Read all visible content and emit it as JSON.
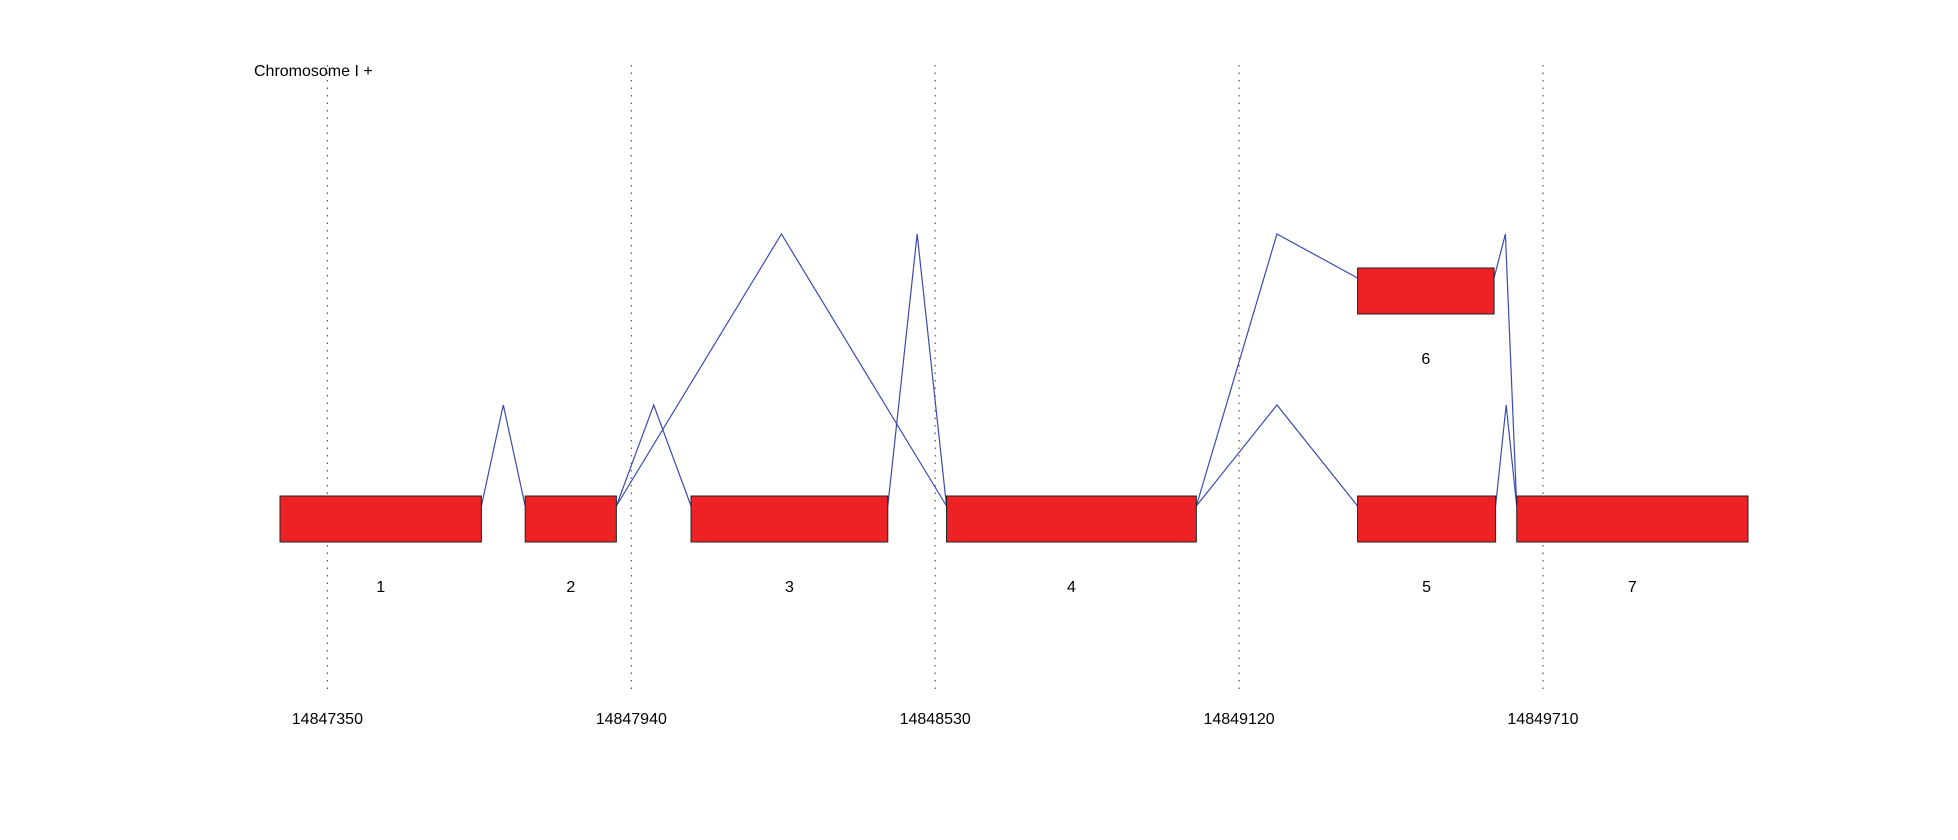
{
  "title": "Chromosome I +",
  "axis": {
    "xlim": [
      14847258,
      14850108
    ],
    "ticks": [
      14847350,
      14847940,
      14848530,
      14849120,
      14849710
    ]
  },
  "exons": [
    {
      "label": "1",
      "start": 14847258,
      "end": 14847649,
      "row": 0
    },
    {
      "label": "2",
      "start": 14847734,
      "end": 14847911,
      "row": 0
    },
    {
      "label": "3",
      "start": 14848056,
      "end": 14848438,
      "row": 0
    },
    {
      "label": "4",
      "start": 14848552,
      "end": 14849037,
      "row": 0
    },
    {
      "label": "5",
      "start": 14849350,
      "end": 14849618,
      "row": 0
    },
    {
      "label": "6",
      "start": 14849350,
      "end": 14849615,
      "row": 1
    },
    {
      "label": "7",
      "start": 14849659,
      "end": 14850108,
      "row": 0
    }
  ]
}
